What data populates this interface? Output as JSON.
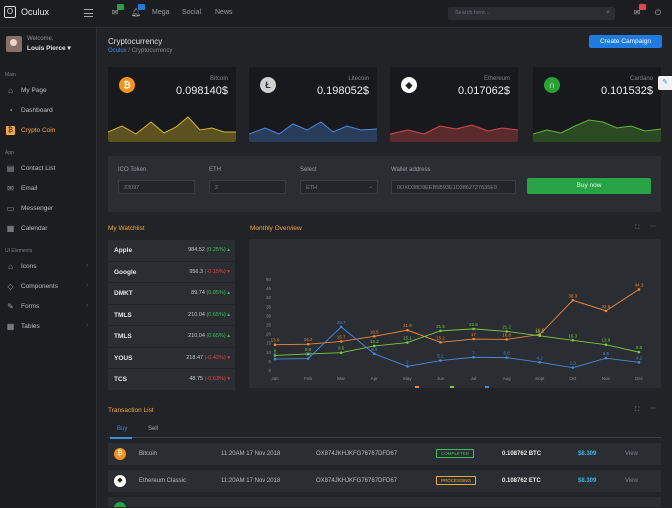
{
  "app": {
    "name": "Oculux",
    "logo_glyph": "O"
  },
  "topnav": {
    "items": [
      "Mega",
      "Social",
      "News"
    ],
    "mail_badge": "",
    "bell_badge": "",
    "search_placeholder": "Search here..."
  },
  "user": {
    "welcome": "Welcome,",
    "name": "Louis Pierce ▾"
  },
  "sidebar": {
    "sections": {
      "main": "Main",
      "app": "App",
      "ui": "UI Elements"
    },
    "items": [
      {
        "label": "My Page",
        "icon": "home-icon"
      },
      {
        "label": "Dashboard",
        "icon": "dashboard-icon"
      },
      {
        "label": "Crypto Coin",
        "icon": "bitcoin-icon",
        "active": true
      },
      {
        "label": "Contact List",
        "icon": "contacts-icon"
      },
      {
        "label": "Email",
        "icon": "email-icon"
      },
      {
        "label": "Messenger",
        "icon": "chat-icon"
      },
      {
        "label": "Calendar",
        "icon": "calendar-icon"
      },
      {
        "label": "Icons",
        "icon": "tag-icon"
      },
      {
        "label": "Components",
        "icon": "diamond-icon"
      },
      {
        "label": "Forms",
        "icon": "pencil-icon"
      },
      {
        "label": "Tables",
        "icon": "table-icon"
      }
    ]
  },
  "page": {
    "title": "Cryptocurrency",
    "crumb_root": "Oculux",
    "crumb_current": "Cryptocurrency",
    "create_btn": "Create Campaign"
  },
  "coins": [
    {
      "name": "Bitcoin",
      "value": "0.098140$",
      "color": "#f7931a",
      "glyph": "₿"
    },
    {
      "name": "Litecoin",
      "value": "0.198052$",
      "color": "#d0d0d0",
      "glyph": "Ł"
    },
    {
      "name": "Ethereum",
      "value": "0.017062$",
      "color": "#ffffff",
      "glyph": "◆"
    },
    {
      "name": "Cardano",
      "value": "0.101532$",
      "color": "#2aa135",
      "glyph": "∩"
    }
  ],
  "form": {
    "token_label": "ICO Token",
    "token_value": "23097",
    "eth_label": "ETH",
    "eth_value": "2",
    "select_label": "Select",
    "select_value": "ETH",
    "wallet_label": "Wallet address",
    "wallet_value": "0OXD38D9EEB5B93E1D3862727635E9",
    "buy": "Buy now"
  },
  "watchlist": {
    "title": "My Watchlist",
    "rows": [
      {
        "sym": "Apple",
        "price": "984.52",
        "chg": "(0.25%)",
        "up": true
      },
      {
        "sym": "Google",
        "price": "956.3",
        "chg": "(-0.15%)",
        "up": false
      },
      {
        "sym": "DMKT",
        "price": "89.74",
        "chg": "(0.85%)",
        "up": true
      },
      {
        "sym": "TMLS",
        "price": "210.04",
        "chg": "(0.65%)",
        "up": true
      },
      {
        "sym": "TMLS",
        "price": "210.04",
        "chg": "(0.65%)",
        "up": true
      },
      {
        "sym": "YOUS",
        "price": "218.47",
        "chg": "(-0.42%)",
        "up": false
      },
      {
        "sym": "TCS",
        "price": "48.75",
        "chg": "(-0.63%)",
        "up": false
      }
    ]
  },
  "overview": {
    "title": "Monthly Overview"
  },
  "chart_data": {
    "type": "line",
    "months": [
      "Jan",
      "Feb",
      "Mar",
      "Apr",
      "May",
      "Jun",
      "Jul",
      "Aug",
      "Sept",
      "Oct",
      "Nov",
      "Dec"
    ],
    "ylim": [
      0,
      50
    ],
    "yticks": [
      0,
      5,
      10,
      15,
      20,
      25,
      30,
      35,
      40,
      45,
      50
    ],
    "series": [
      {
        "name": "Bitcoin",
        "color": "#f08a3a",
        "values": [
          13.9,
          14.2,
          15.7,
          18.5,
          21.9,
          15.2,
          17,
          16.8,
          19.5,
          38.3,
          32.5,
          44.3
        ]
      },
      {
        "name": "Cardano",
        "color": "#7ac943",
        "values": [
          8,
          8.8,
          9.5,
          13.2,
          15.1,
          21.5,
          22.6,
          21.2,
          18.8,
          16.3,
          13.9,
          9.8
        ]
      },
      {
        "name": "Litecoin",
        "color": "#4a89dc",
        "values": [
          6,
          6.3,
          23.7,
          8.9,
          2,
          5.2,
          7,
          6.8,
          4.2,
          1.3,
          6.5,
          4.2
        ]
      }
    ]
  },
  "transactions": {
    "title": "Transaction List",
    "tabs": [
      "Buy",
      "Sell"
    ],
    "rows": [
      {
        "coin": "Bitcoin",
        "color": "#f7931a",
        "glyph": "₿",
        "date": "11:20AM 17 Nov 2018",
        "tx": "OX874JKHJKFG76767DFD67",
        "status": "COMPLETED",
        "status_color": "#3fbf5b",
        "amount": "0.108762 BTC",
        "usd": "$8.309",
        "action": "View"
      },
      {
        "coin": "Ethereum Classic",
        "color": "#ffffff",
        "glyph": "◆",
        "date": "11:20AM 17 Nov 2018",
        "tx": "OX874JKHJKFG76767DFD67",
        "status": "PROCESSING",
        "status_color": "#f6a83b",
        "amount": "0.108762 ETC",
        "usd": "$8.309",
        "action": "View"
      }
    ]
  }
}
